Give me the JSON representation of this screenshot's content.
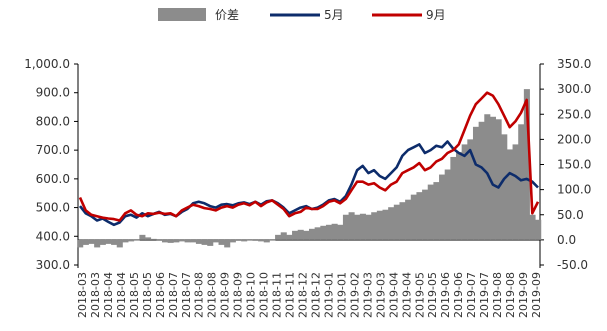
{
  "chart_data": {
    "type": "bar+line",
    "legend": {
      "position": "top",
      "items": [
        "价差",
        "5月",
        "9月"
      ]
    },
    "colors": {
      "spread": "#8c8c8c",
      "may": "#0d2c6b",
      "sep": "#c00000",
      "axis": "#000000"
    },
    "left_axis": {
      "ylim": [
        300,
        1000
      ],
      "ticks": [
        "300.0",
        "400.0",
        "500.0",
        "600.0",
        "700.0",
        "800.0",
        "900.0",
        "1,000.0"
      ]
    },
    "right_axis": {
      "ylim": [
        -50,
        350
      ],
      "ticks": [
        "-50.0",
        "0.0",
        "50.0",
        "100.0",
        "150.0",
        "200.0",
        "250.0",
        "300.0",
        "350.0"
      ]
    },
    "x_labels": [
      "2018-03",
      "2018-03",
      "2018-04",
      "2018-04",
      "2018-05",
      "2018-05",
      "2018-06",
      "2018-07",
      "2018-07",
      "2018-08",
      "2018-08",
      "2018-09",
      "2018-09",
      "2018-10",
      "2018-10",
      "2018-11",
      "2018-11",
      "2018-12",
      "2018-12",
      "2019-01",
      "2019-01",
      "2019-02",
      "2019-03",
      "2019-03",
      "2019-04",
      "2019-04",
      "2019-05",
      "2019-05",
      "2019-06",
      "2019-06",
      "2019-07",
      "2019-07",
      "2019-08",
      "2019-08",
      "2019-09",
      "2019-09"
    ],
    "series": [
      {
        "name": "5月",
        "axis": "left",
        "kind": "line",
        "points": [
          [
            0,
            505
          ],
          [
            1,
            480
          ],
          [
            2,
            470
          ],
          [
            3,
            455
          ],
          [
            4,
            462
          ],
          [
            5,
            450
          ],
          [
            6,
            440
          ],
          [
            7,
            448
          ],
          [
            8,
            470
          ],
          [
            9,
            475
          ],
          [
            10,
            465
          ],
          [
            11,
            480
          ],
          [
            12,
            470
          ],
          [
            13,
            478
          ],
          [
            14,
            485
          ],
          [
            15,
            475
          ],
          [
            16,
            478
          ],
          [
            17,
            470
          ],
          [
            18,
            485
          ],
          [
            19,
            495
          ],
          [
            20,
            515
          ],
          [
            21,
            520
          ],
          [
            22,
            515
          ],
          [
            23,
            505
          ],
          [
            24,
            500
          ],
          [
            25,
            510
          ],
          [
            26,
            512
          ],
          [
            27,
            508
          ],
          [
            28,
            515
          ],
          [
            29,
            518
          ],
          [
            30,
            512
          ],
          [
            31,
            520
          ],
          [
            32,
            510
          ],
          [
            33,
            522
          ],
          [
            34,
            525
          ],
          [
            35,
            515
          ],
          [
            36,
            500
          ],
          [
            37,
            480
          ],
          [
            38,
            490
          ],
          [
            39,
            500
          ],
          [
            40,
            505
          ],
          [
            41,
            495
          ],
          [
            42,
            500
          ],
          [
            43,
            510
          ],
          [
            44,
            525
          ],
          [
            45,
            530
          ],
          [
            46,
            520
          ],
          [
            47,
            540
          ],
          [
            48,
            580
          ],
          [
            49,
            630
          ],
          [
            50,
            645
          ],
          [
            51,
            620
          ],
          [
            52,
            630
          ],
          [
            53,
            610
          ],
          [
            54,
            600
          ],
          [
            55,
            620
          ],
          [
            56,
            640
          ],
          [
            57,
            680
          ],
          [
            58,
            700
          ],
          [
            59,
            710
          ],
          [
            60,
            720
          ],
          [
            61,
            690
          ],
          [
            62,
            700
          ],
          [
            63,
            715
          ],
          [
            64,
            710
          ],
          [
            65,
            730
          ],
          [
            66,
            705
          ],
          [
            67,
            690
          ],
          [
            68,
            680
          ],
          [
            69,
            700
          ],
          [
            70,
            650
          ],
          [
            71,
            640
          ],
          [
            72,
            620
          ],
          [
            73,
            580
          ],
          [
            74,
            570
          ],
          [
            75,
            600
          ],
          [
            76,
            620
          ],
          [
            77,
            610
          ],
          [
            78,
            595
          ],
          [
            79,
            600
          ],
          [
            80,
            590
          ],
          [
            81,
            570
          ]
        ]
      },
      {
        "name": "9月",
        "axis": "left",
        "kind": "line",
        "points": [
          [
            0,
            535
          ],
          [
            1,
            490
          ],
          [
            2,
            475
          ],
          [
            3,
            470
          ],
          [
            4,
            465
          ],
          [
            5,
            462
          ],
          [
            6,
            460
          ],
          [
            7,
            455
          ],
          [
            8,
            480
          ],
          [
            9,
            490
          ],
          [
            10,
            475
          ],
          [
            11,
            470
          ],
          [
            12,
            480
          ],
          [
            13,
            478
          ],
          [
            14,
            482
          ],
          [
            15,
            478
          ],
          [
            16,
            480
          ],
          [
            17,
            470
          ],
          [
            18,
            490
          ],
          [
            19,
            500
          ],
          [
            20,
            510
          ],
          [
            21,
            505
          ],
          [
            22,
            498
          ],
          [
            23,
            495
          ],
          [
            24,
            490
          ],
          [
            25,
            500
          ],
          [
            26,
            505
          ],
          [
            27,
            500
          ],
          [
            28,
            510
          ],
          [
            29,
            515
          ],
          [
            30,
            508
          ],
          [
            31,
            520
          ],
          [
            32,
            505
          ],
          [
            33,
            518
          ],
          [
            34,
            525
          ],
          [
            35,
            510
          ],
          [
            36,
            495
          ],
          [
            37,
            470
          ],
          [
            38,
            480
          ],
          [
            39,
            485
          ],
          [
            40,
            500
          ],
          [
            41,
            495
          ],
          [
            42,
            495
          ],
          [
            43,
            505
          ],
          [
            44,
            520
          ],
          [
            45,
            525
          ],
          [
            46,
            515
          ],
          [
            47,
            530
          ],
          [
            48,
            560
          ],
          [
            49,
            590
          ],
          [
            50,
            590
          ],
          [
            51,
            580
          ],
          [
            52,
            585
          ],
          [
            53,
            570
          ],
          [
            54,
            560
          ],
          [
            55,
            580
          ],
          [
            56,
            590
          ],
          [
            57,
            620
          ],
          [
            58,
            630
          ],
          [
            59,
            640
          ],
          [
            60,
            655
          ],
          [
            61,
            630
          ],
          [
            62,
            640
          ],
          [
            63,
            660
          ],
          [
            64,
            670
          ],
          [
            65,
            690
          ],
          [
            66,
            700
          ],
          [
            67,
            720
          ],
          [
            68,
            770
          ],
          [
            69,
            820
          ],
          [
            70,
            860
          ],
          [
            71,
            880
          ],
          [
            72,
            900
          ],
          [
            73,
            890
          ],
          [
            74,
            860
          ],
          [
            75,
            820
          ],
          [
            76,
            780
          ],
          [
            77,
            800
          ],
          [
            78,
            830
          ],
          [
            79,
            875
          ],
          [
            80,
            480
          ],
          [
            81,
            520
          ]
        ]
      },
      {
        "name": "价差",
        "axis": "right",
        "kind": "bar",
        "points": [
          [
            0,
            -15
          ],
          [
            1,
            -10
          ],
          [
            2,
            -8
          ],
          [
            3,
            -15
          ],
          [
            4,
            -10
          ],
          [
            5,
            -8
          ],
          [
            6,
            -10
          ],
          [
            7,
            -15
          ],
          [
            8,
            -5
          ],
          [
            9,
            -3
          ],
          [
            10,
            0
          ],
          [
            11,
            10
          ],
          [
            12,
            5
          ],
          [
            13,
            2
          ],
          [
            14,
            -2
          ],
          [
            15,
            -5
          ],
          [
            16,
            -6
          ],
          [
            17,
            -5
          ],
          [
            18,
            -3
          ],
          [
            19,
            -5
          ],
          [
            20,
            -5
          ],
          [
            21,
            -8
          ],
          [
            22,
            -10
          ],
          [
            23,
            -12
          ],
          [
            24,
            -5
          ],
          [
            25,
            -10
          ],
          [
            26,
            -15
          ],
          [
            27,
            -5
          ],
          [
            28,
            -2
          ],
          [
            29,
            -3
          ],
          [
            30,
            -1
          ],
          [
            31,
            -2
          ],
          [
            32,
            -3
          ],
          [
            33,
            -5
          ],
          [
            34,
            0
          ],
          [
            35,
            10
          ],
          [
            36,
            15
          ],
          [
            37,
            10
          ],
          [
            38,
            18
          ],
          [
            39,
            20
          ],
          [
            40,
            18
          ],
          [
            41,
            22
          ],
          [
            42,
            25
          ],
          [
            43,
            28
          ],
          [
            44,
            30
          ],
          [
            45,
            32
          ],
          [
            46,
            30
          ],
          [
            47,
            50
          ],
          [
            48,
            55
          ],
          [
            49,
            50
          ],
          [
            50,
            52
          ],
          [
            51,
            50
          ],
          [
            52,
            55
          ],
          [
            53,
            58
          ],
          [
            54,
            60
          ],
          [
            55,
            65
          ],
          [
            56,
            70
          ],
          [
            57,
            75
          ],
          [
            58,
            80
          ],
          [
            59,
            90
          ],
          [
            60,
            95
          ],
          [
            61,
            100
          ],
          [
            62,
            110
          ],
          [
            63,
            115
          ],
          [
            64,
            130
          ],
          [
            65,
            140
          ],
          [
            66,
            165
          ],
          [
            67,
            175
          ],
          [
            68,
            190
          ],
          [
            69,
            200
          ],
          [
            70,
            225
          ],
          [
            71,
            235
          ],
          [
            72,
            250
          ],
          [
            73,
            245
          ],
          [
            74,
            240
          ],
          [
            75,
            210
          ],
          [
            76,
            180
          ],
          [
            77,
            190
          ],
          [
            78,
            230
          ],
          [
            79,
            300
          ],
          [
            80,
            50
          ],
          [
            81,
            40
          ]
        ]
      }
    ]
  }
}
